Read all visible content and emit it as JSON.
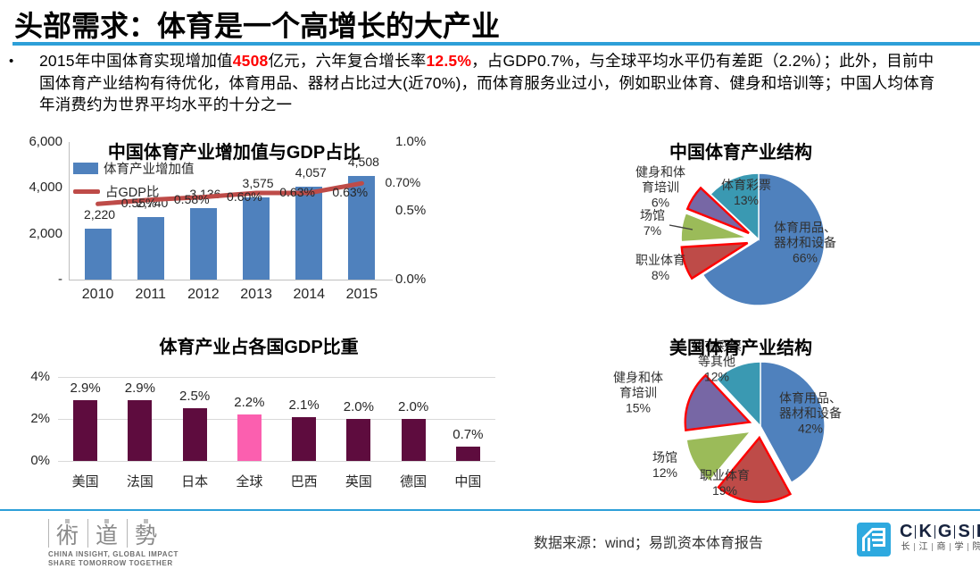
{
  "page": {
    "title": "头部需求：体育是一个高增长的大产业",
    "bullet_char": "•",
    "body": {
      "part1": "2015年中国体育实现增加值",
      "red1": "4508",
      "part2": "亿元，六年复合增长率",
      "red2": "12.5%",
      "part3": "，占GDP0.7%，与全球平均水平仍有差距（2.2%）；此外，目前中国体育产业结构有待优化，体育用品、器材占比过大(近70%)，而体育服务业过小，例如职业体育、健身和培训等；中国人均体育年消费约为世界平均水平的十分之一"
    }
  },
  "colors": {
    "accent_blue": "#2d9fd8",
    "bar_blue": "#4f81bd",
    "line_red": "#be4b48",
    "pie_blue": "#4f81bd",
    "pie_teal": "#3a99b2",
    "pie_purple": "#7767a5",
    "pie_green": "#9bbb59",
    "pie_red": "#be4b48",
    "explode_stroke": "#ff0000",
    "maroon": "#5e0c3e",
    "pink": "#fb5faf",
    "red_text": "#ff0000",
    "grid": "#d9d9d9"
  },
  "chart_data": [
    {
      "id": "combo",
      "type": "bar",
      "title": "中国体育产业增加值与GDP占比",
      "categories": [
        "2010",
        "2011",
        "2012",
        "2013",
        "2014",
        "2015"
      ],
      "series": [
        {
          "name": "体育产业增加值",
          "kind": "bar",
          "axis": "left",
          "values": [
            2220,
            2740,
            3136,
            3575,
            4057,
            4508
          ],
          "labels": [
            "2,220",
            "2,740",
            "3,136",
            "3,575",
            "4,057",
            "4,508"
          ]
        },
        {
          "name": "占GDP比",
          "kind": "line",
          "axis": "right",
          "values": [
            0.55,
            0.58,
            0.6,
            0.63,
            0.63,
            0.7
          ],
          "labels": [
            "0.55%",
            "0.58%",
            "0.60%",
            "0.63%",
            "0.63%",
            "0.70%"
          ]
        }
      ],
      "left_axis": {
        "ticks": [
          "6,000",
          "4,000",
          "2,000",
          "-"
        ],
        "tick_values": [
          6000,
          4000,
          2000,
          0
        ],
        "ylim": [
          0,
          6000
        ]
      },
      "right_axis": {
        "ticks": [
          "1.0%",
          "0.5%",
          "0.0%"
        ],
        "tick_values": [
          1.0,
          0.5,
          0.0
        ],
        "ylim": [
          0,
          1.0
        ]
      },
      "legend_position": "top-left",
      "grid": false
    },
    {
      "id": "pie_china",
      "type": "pie",
      "title": "中国体育产业结构",
      "slices": [
        {
          "label": "体育用品、\n器材和设备",
          "pct": 66,
          "pct_label": "66%",
          "color_key": "pie_blue",
          "exploded": false,
          "red_border": false,
          "label_inside": true
        },
        {
          "label": "职业体育",
          "pct": 8,
          "pct_label": "8%",
          "color_key": "pie_red",
          "exploded": true,
          "red_border": true,
          "label_inside": false
        },
        {
          "label": "场馆",
          "pct": 7,
          "pct_label": "7%",
          "color_key": "pie_green",
          "exploded": true,
          "red_border": false,
          "label_inside": false
        },
        {
          "label": "健身和体\n育培训",
          "pct": 6,
          "pct_label": "6%",
          "color_key": "pie_purple",
          "exploded": true,
          "red_border": true,
          "label_inside": false
        },
        {
          "label": "体育彩票",
          "pct": 13,
          "pct_label": "13%",
          "color_key": "pie_teal",
          "exploded": false,
          "red_border": false,
          "label_inside": true
        }
      ],
      "start_angle_deg": 0,
      "direction": "clockwise"
    },
    {
      "id": "country",
      "type": "bar",
      "title": "体育产业占各国GDP比重",
      "categories": [
        "美国",
        "法国",
        "日本",
        "全球",
        "巴西",
        "英国",
        "德国",
        "中国"
      ],
      "values": [
        2.9,
        2.9,
        2.5,
        2.2,
        2.1,
        2.0,
        2.0,
        0.7
      ],
      "labels": [
        "2.9%",
        "2.9%",
        "2.5%",
        "2.2%",
        "2.1%",
        "2.0%",
        "2.0%",
        "0.7%"
      ],
      "highlight_index": 3,
      "y_ticks": [
        "4%",
        "2%",
        "0%"
      ],
      "y_tick_values": [
        4,
        2,
        0
      ],
      "ylim": [
        0,
        4
      ],
      "grid": true
    },
    {
      "id": "pie_us",
      "type": "pie",
      "title": "美国体育产业结构",
      "slices": [
        {
          "label": "体育用品、\n器材和设备",
          "pct": 42,
          "pct_label": "42%",
          "color_key": "pie_blue",
          "exploded": false,
          "red_border": false,
          "label_inside": true
        },
        {
          "label": "职业体育",
          "pct": 19,
          "pct_label": "19%",
          "color_key": "pie_red",
          "exploded": true,
          "red_border": true,
          "label_inside": true
        },
        {
          "label": "场馆",
          "pct": 12,
          "pct_label": "12%",
          "color_key": "pie_green",
          "exploded": true,
          "red_border": false,
          "label_inside": false
        },
        {
          "label": "健身和体\n育培训",
          "pct": 15,
          "pct_label": "15%",
          "color_key": "pie_purple",
          "exploded": true,
          "red_border": true,
          "label_inside": false
        },
        {
          "label": "体育彩票\n等其他",
          "pct": 12,
          "pct_label": "12%",
          "color_key": "pie_teal",
          "exploded": false,
          "red_border": false,
          "label_inside": false
        }
      ],
      "start_angle_deg": 0,
      "direction": "clockwise"
    }
  ],
  "footer": {
    "brand_chars": [
      "術",
      "道",
      "勢"
    ],
    "tagline1": "CHINA INSIGHT, GLOBAL IMPACT",
    "tagline2": "SHARE TOMORROW TOGETHER",
    "source": "数据来源：wind；易凯资本体育报告",
    "ckgsb_letters": [
      "C",
      "K",
      "G",
      "S",
      "B"
    ],
    "ckgsb_chinese": [
      "长",
      "江",
      "商",
      "学",
      "院"
    ]
  }
}
